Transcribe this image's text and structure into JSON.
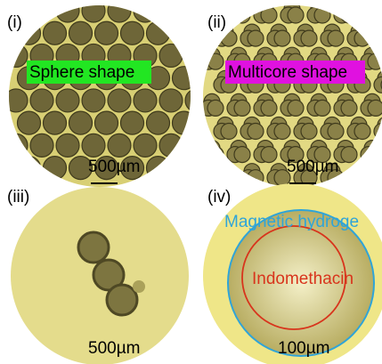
{
  "panels": [
    {
      "label": "(i)",
      "caption": "Sphere shape",
      "scale": "500µm"
    },
    {
      "label": "(ii)",
      "caption": "Multicore shape",
      "scale": "500µm"
    },
    {
      "label": "(iii)",
      "scale": "500µm"
    },
    {
      "label": "(iv)",
      "outer_label": "Magnetic hydroge",
      "inner_label": "Indomethacin",
      "scale": "100µm"
    }
  ]
}
